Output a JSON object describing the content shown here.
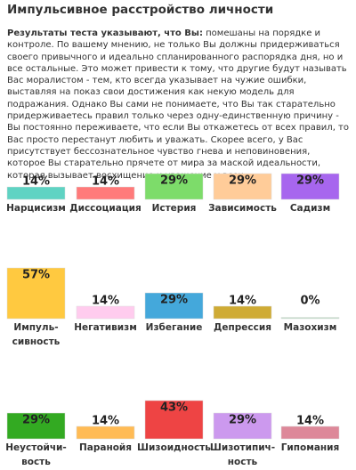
{
  "title": "Импульсивное расстройство личности",
  "intro": {
    "lead": "Результаты теста указывают, что Вы:",
    "text": "помешаны на порядке и контроле. По вашему мнению, не только Вы должны придерживаться своего привычного и идеально спланированного распорядка дня, но и все остальные. Это может привести к тому, что другие будут называть Вас моралистом - тем, кто всегда указывает на чужие ошибки, выставляя на показ свои достижения как некую модель для подражания. Однако Вы сами не понимаете, что Вы так старательно придерживаетесь правил только через одну-единственную причину - Вы постоянно переживаете, что если Вы откажетесь от всех правил, то Вас просто перестанут любить и уважать. Скорее всего, у Вас присутствует бессознательное чувство гнева и неповиновения, которое Вы старательно прячете от мира за маской идеальности, которая вызывает восхищение и уважение у всех."
  },
  "rows": [
    {
      "items": [
        {
          "label": [
            "Нарцисизм"
          ],
          "value": 14,
          "value_label": "14%",
          "color": "#5fd3c3"
        },
        {
          "label": [
            "Диссоциация"
          ],
          "value": 14,
          "value_label": "14%",
          "color": "#ff7a7a"
        },
        {
          "label": [
            "Истерия"
          ],
          "value": 29,
          "value_label": "29%",
          "color": "#7ddc6a"
        },
        {
          "label": [
            "Зависимость"
          ],
          "value": 29,
          "value_label": "29%",
          "color": "#ffcc99"
        },
        {
          "label": [
            "Садизм"
          ],
          "value": 29,
          "value_label": "29%",
          "color": "#a766ee"
        }
      ]
    },
    {
      "items": [
        {
          "label": [
            "Импуль-",
            "сивность"
          ],
          "value": 57,
          "value_label": "57%",
          "color": "#ffc940"
        },
        {
          "label": [
            "Негативизм"
          ],
          "value": 14,
          "value_label": "14%",
          "color": "#ffccee"
        },
        {
          "label": [
            "Избегание"
          ],
          "value": 29,
          "value_label": "29%",
          "color": "#44a8db"
        },
        {
          "label": [
            "Депрессия"
          ],
          "value": 14,
          "value_label": "14%",
          "color": "#cfab35"
        },
        {
          "label": [
            "Мазохизм"
          ],
          "value": 0,
          "value_label": "0%",
          "color": "#bfdcc6"
        }
      ]
    },
    {
      "items": [
        {
          "label": [
            "Неустойчи-",
            "вость"
          ],
          "value": 29,
          "value_label": "29%",
          "color": "#33aa22"
        },
        {
          "label": [
            "Паранойя"
          ],
          "value": 14,
          "value_label": "14%",
          "color": "#ffbb55"
        },
        {
          "label": [
            "Шизоидность"
          ],
          "value": 43,
          "value_label": "43%",
          "color": "#ee4444"
        },
        {
          "label": [
            "Шизотипич-",
            "ность"
          ],
          "value": 29,
          "value_label": "29%",
          "color": "#cc99ee"
        },
        {
          "label": [
            "Гипомания"
          ],
          "value": 14,
          "value_label": "14%",
          "color": "#dd8899"
        }
      ]
    }
  ]
}
